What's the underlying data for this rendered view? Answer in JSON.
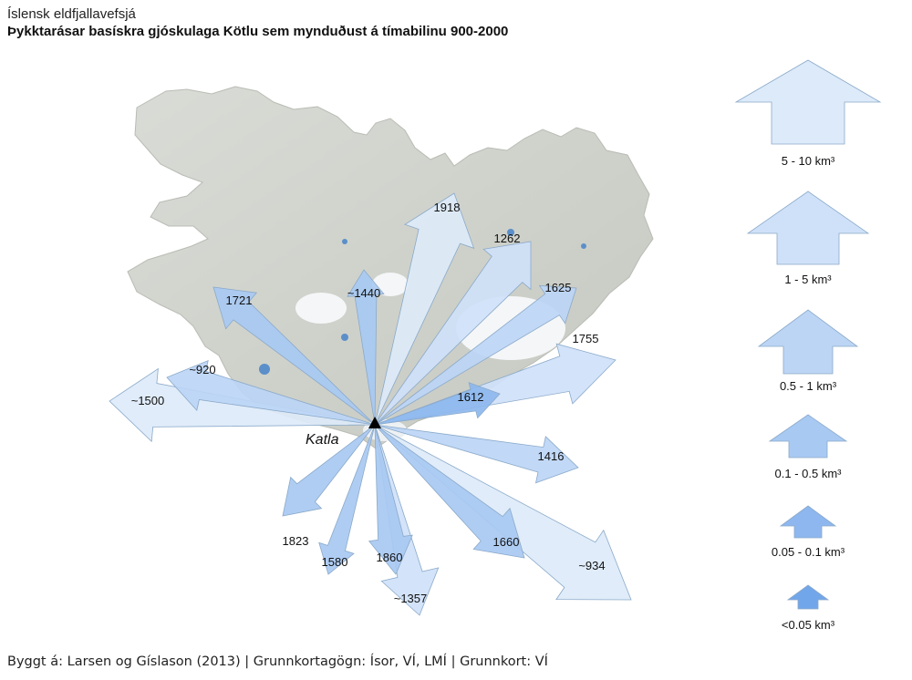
{
  "header": {
    "app_title": "Íslensk eldfjallavefsjá",
    "map_title": "Þykktarásar basískra gjóskulaga Kötlu sem mynduðust á tímabilinu 900-2000"
  },
  "map": {
    "volcano_label": "Katla",
    "arrows": [
      {
        "label": "1918",
        "class": 0
      },
      {
        "label": "1262",
        "class": 1
      },
      {
        "label": "1625",
        "class": 2
      },
      {
        "label": "1755",
        "class": 1
      },
      {
        "label": "1612",
        "class": 4
      },
      {
        "label": "~1440",
        "class": 3
      },
      {
        "label": "1721",
        "class": 3
      },
      {
        "label": "~920",
        "class": 2
      },
      {
        "label": "~1500",
        "class": 0
      },
      {
        "label": "1416",
        "class": 2
      },
      {
        "label": "~934",
        "class": 0
      },
      {
        "label": "1660",
        "class": 3
      },
      {
        "label": "1823",
        "class": 3
      },
      {
        "label": "1580",
        "class": 3
      },
      {
        "label": "1860",
        "class": 3
      },
      {
        "label": "~1357",
        "class": 1
      }
    ]
  },
  "legend": {
    "items": [
      {
        "label": "5 - 10 km³",
        "color": "#ddeaf9"
      },
      {
        "label": "1 - 5 km³",
        "color": "#cfe1f8"
      },
      {
        "label": "0.5 - 1 km³",
        "color": "#bcd5f5"
      },
      {
        "label": "0.1 - 0.5 km³",
        "color": "#a8c9f2"
      },
      {
        "label": "0.05 - 0.1 km³",
        "color": "#8db7ee"
      },
      {
        "label": "<0.05 km³",
        "color": "#72a6ea"
      }
    ]
  },
  "footer": {
    "source": "Byggt á: Larsen og Gíslason (2013)",
    "sep1": " | ",
    "basemap_data": "Grunnkortagögn: Ísor, VÍ, LMÍ",
    "sep2": " | ",
    "basemap": "Grunnkort: VÍ"
  }
}
